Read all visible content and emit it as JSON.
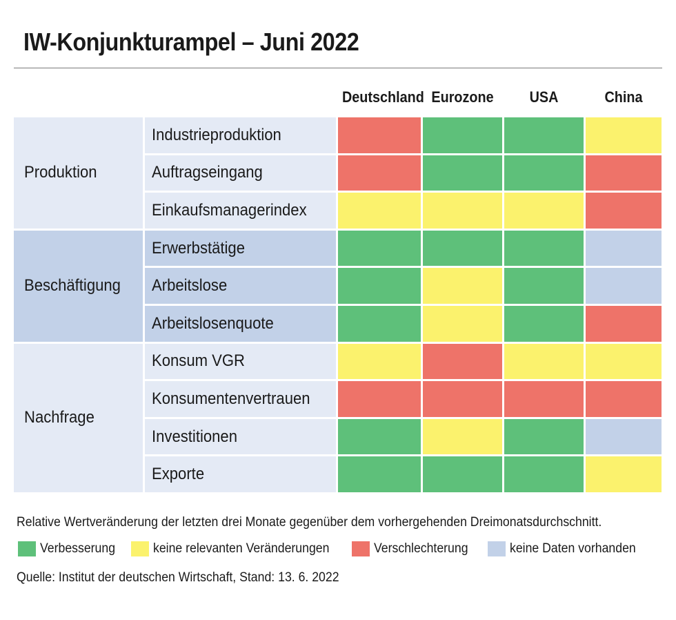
{
  "title": "IW-Konjunkturampel – Juni 2022",
  "colors": {
    "green": "#5ec07a",
    "yellow": "#fbf26d",
    "red": "#ee7369",
    "blue": "#c2d1e8",
    "row_light": "#e4eaf5",
    "row_dark": "#c2d1e8"
  },
  "chart_data": {
    "type": "table",
    "columns": [
      "Deutschland",
      "Eurozone",
      "USA",
      "China"
    ],
    "groups": [
      {
        "label": "Produktion",
        "shade": "light",
        "rows": [
          {
            "indicator": "Industrieproduktion",
            "values": [
              "red",
              "green",
              "green",
              "yellow"
            ]
          },
          {
            "indicator": "Auftragseingang",
            "values": [
              "red",
              "green",
              "green",
              "red"
            ]
          },
          {
            "indicator": "Einkaufsmanagerindex",
            "values": [
              "yellow",
              "yellow",
              "yellow",
              "red"
            ]
          }
        ]
      },
      {
        "label": "Beschäftigung",
        "shade": "dark",
        "rows": [
          {
            "indicator": "Erwerbstätige",
            "values": [
              "green",
              "green",
              "green",
              "blue"
            ]
          },
          {
            "indicator": "Arbeitslose",
            "values": [
              "green",
              "yellow",
              "green",
              "blue"
            ]
          },
          {
            "indicator": "Arbeitslosenquote",
            "values": [
              "green",
              "yellow",
              "green",
              "red"
            ]
          }
        ]
      },
      {
        "label": "Nachfrage",
        "shade": "light",
        "rows": [
          {
            "indicator": "Konsum VGR",
            "values": [
              "yellow",
              "red",
              "yellow",
              "yellow"
            ]
          },
          {
            "indicator": "Konsumentenvertrauen",
            "values": [
              "red",
              "red",
              "red",
              "red"
            ]
          },
          {
            "indicator": "Investitionen",
            "values": [
              "green",
              "yellow",
              "green",
              "blue"
            ]
          },
          {
            "indicator": "Exporte",
            "values": [
              "green",
              "green",
              "green",
              "yellow"
            ]
          }
        ]
      }
    ]
  },
  "note": "Relative Wertveränderung der letzten drei Monate gegenüber dem vorhergehenden Dreimonatsdurchschnitt.",
  "legend": [
    {
      "label": "Verbesserung",
      "color": "green"
    },
    {
      "label": "keine relevanten Veränderungen",
      "color": "yellow"
    },
    {
      "label": "Verschlechterung",
      "color": "red"
    },
    {
      "label": "keine Daten vorhanden",
      "color": "blue"
    }
  ],
  "source": "Quelle: Institut der deutschen Wirtschaft, Stand: 13. 6. 2022"
}
